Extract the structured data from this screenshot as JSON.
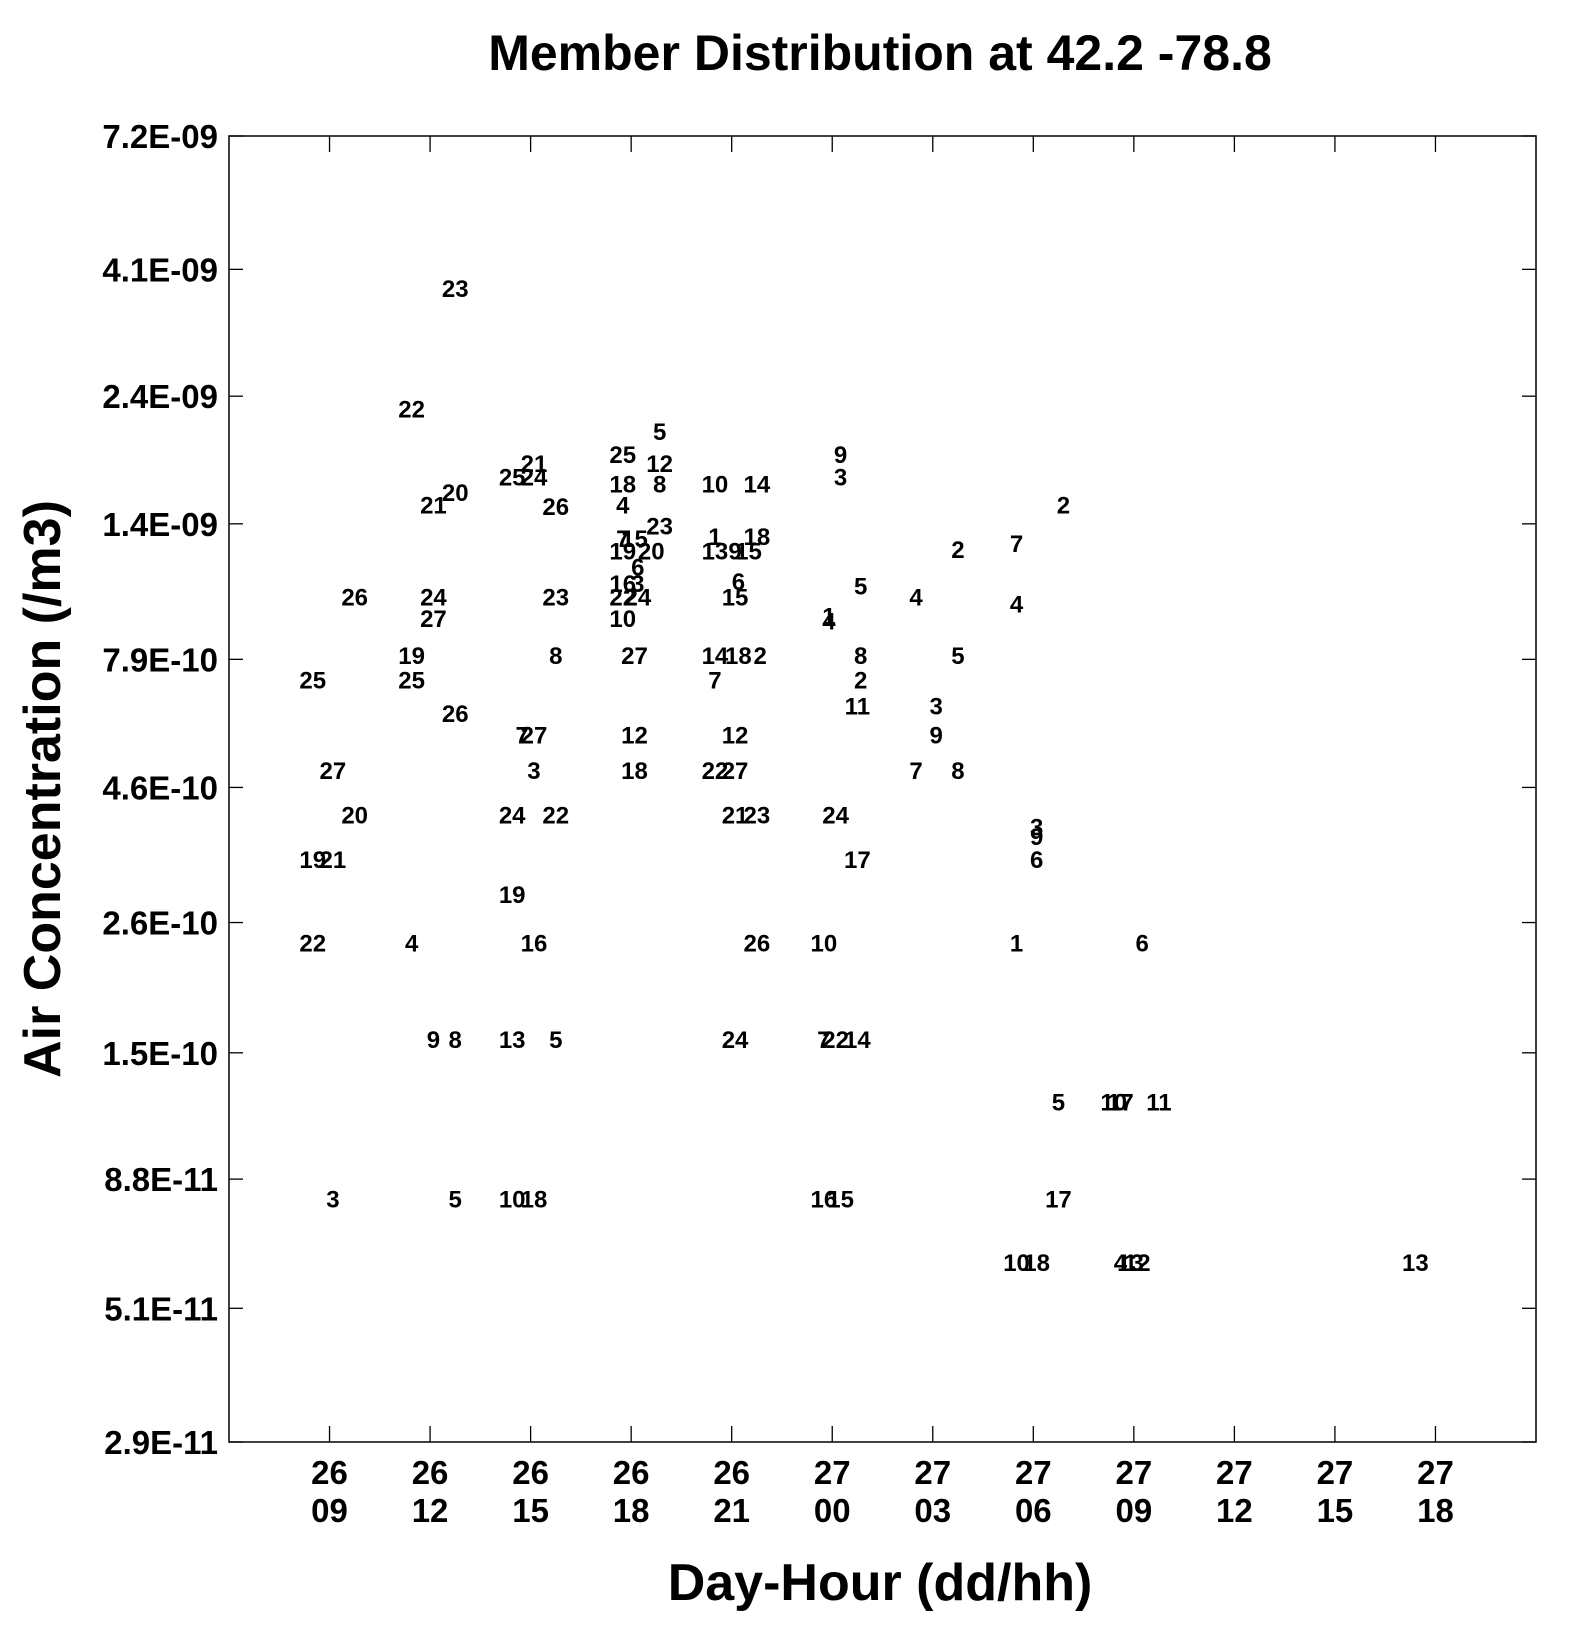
{
  "chart_data": {
    "type": "scatter",
    "title": "Member Distribution at  42.2  -78.8",
    "xlabel": "Day-Hour (dd/hh)",
    "ylabel": "Air Concentration (/m3)",
    "yscale": "log",
    "ylim": [
      2.9e-11,
      7.2e-09
    ],
    "xlim": [
      "26 06",
      "27 21"
    ],
    "grid": false,
    "y_ticks": [
      {
        "value": 7.2e-09,
        "label": "7.2E-09"
      },
      {
        "value": 4.1e-09,
        "label": "4.1E-09"
      },
      {
        "value": 2.4e-09,
        "label": "2.4E-09"
      },
      {
        "value": 1.4e-09,
        "label": "1.4E-09"
      },
      {
        "value": 7.9e-10,
        "label": "7.9E-10"
      },
      {
        "value": 4.6e-10,
        "label": "4.6E-10"
      },
      {
        "value": 2.6e-10,
        "label": "2.6E-10"
      },
      {
        "value": 1.5e-10,
        "label": "1.5E-10"
      },
      {
        "value": 8.8e-11,
        "label": "8.8E-11"
      },
      {
        "value": 5.1e-11,
        "label": "5.1E-11"
      },
      {
        "value": 2.9e-11,
        "label": "2.9E-11"
      }
    ],
    "x_ticks": [
      {
        "hour": 3,
        "day": "26",
        "hh": "09"
      },
      {
        "hour": 6,
        "day": "26",
        "hh": "12"
      },
      {
        "hour": 9,
        "day": "26",
        "hh": "15"
      },
      {
        "hour": 12,
        "day": "26",
        "hh": "18"
      },
      {
        "hour": 15,
        "day": "26",
        "hh": "21"
      },
      {
        "hour": 18,
        "day": "27",
        "hh": "00"
      },
      {
        "hour": 21,
        "day": "27",
        "hh": "03"
      },
      {
        "hour": 24,
        "day": "27",
        "hh": "06"
      },
      {
        "hour": 27,
        "day": "27",
        "hh": "09"
      },
      {
        "hour": 30,
        "day": "27",
        "hh": "12"
      },
      {
        "hour": 33,
        "day": "27",
        "hh": "15"
      },
      {
        "hour": 36,
        "day": "27",
        "hh": "18"
      }
    ],
    "points": [
      {
        "m": "23",
        "x": 6.75,
        "y": 3.79e-09
      },
      {
        "m": "22",
        "x": 5.45,
        "y": 2.28e-09
      },
      {
        "m": "20",
        "x": 6.75,
        "y": 1.6e-09
      },
      {
        "m": "21",
        "x": 6.1,
        "y": 1.52e-09
      },
      {
        "m": "26",
        "x": 3.75,
        "y": 1.03e-09
      },
      {
        "m": "24",
        "x": 6.1,
        "y": 1.03e-09
      },
      {
        "m": "27",
        "x": 6.1,
        "y": 9.4e-10
      },
      {
        "m": "19",
        "x": 5.45,
        "y": 8.05e-10
      },
      {
        "m": "25",
        "x": 2.5,
        "y": 7.25e-10
      },
      {
        "m": "25",
        "x": 5.45,
        "y": 7.25e-10
      },
      {
        "m": "26",
        "x": 6.75,
        "y": 6.3e-10
      },
      {
        "m": "27",
        "x": 3.1,
        "y": 4.95e-10
      },
      {
        "m": "20",
        "x": 3.75,
        "y": 4.1e-10
      },
      {
        "m": "19",
        "x": 2.5,
        "y": 3.4e-10
      },
      {
        "m": "21",
        "x": 3.1,
        "y": 3.4e-10
      },
      {
        "m": "22",
        "x": 2.5,
        "y": 2.39e-10
      },
      {
        "m": "4",
        "x": 5.45,
        "y": 2.39e-10
      },
      {
        "m": "9",
        "x": 6.1,
        "y": 1.59e-10
      },
      {
        "m": "8",
        "x": 6.75,
        "y": 1.59e-10
      },
      {
        "m": "3",
        "x": 3.1,
        "y": 8.1e-11
      },
      {
        "m": "5",
        "x": 6.75,
        "y": 8.1e-11
      },
      {
        "m": "21",
        "x": 9.1,
        "y": 1.81e-09
      },
      {
        "m": "25",
        "x": 8.45,
        "y": 1.71e-09
      },
      {
        "m": "24",
        "x": 9.1,
        "y": 1.71e-09
      },
      {
        "m": "26",
        "x": 9.75,
        "y": 1.51e-09
      },
      {
        "m": "23",
        "x": 9.75,
        "y": 1.03e-09
      },
      {
        "m": "8",
        "x": 9.75,
        "y": 8.05e-10
      },
      {
        "m": "7",
        "x": 8.75,
        "y": 5.75e-10
      },
      {
        "m": "27",
        "x": 9.1,
        "y": 5.75e-10
      },
      {
        "m": "3",
        "x": 9.1,
        "y": 4.95e-10
      },
      {
        "m": "24",
        "x": 8.45,
        "y": 4.1e-10
      },
      {
        "m": "22",
        "x": 9.75,
        "y": 4.1e-10
      },
      {
        "m": "19",
        "x": 8.45,
        "y": 2.93e-10
      },
      {
        "m": "16",
        "x": 9.1,
        "y": 2.39e-10
      },
      {
        "m": "13",
        "x": 8.45,
        "y": 1.59e-10
      },
      {
        "m": "5",
        "x": 9.75,
        "y": 1.59e-10
      },
      {
        "m": "10",
        "x": 8.45,
        "y": 8.1e-11
      },
      {
        "m": "18",
        "x": 9.1,
        "y": 8.1e-11
      },
      {
        "m": "5",
        "x": 12.85,
        "y": 2.07e-09
      },
      {
        "m": "25",
        "x": 11.75,
        "y": 1.88e-09
      },
      {
        "m": "12",
        "x": 12.85,
        "y": 1.81e-09
      },
      {
        "m": "18",
        "x": 11.75,
        "y": 1.66e-09
      },
      {
        "m": "8",
        "x": 12.85,
        "y": 1.66e-09
      },
      {
        "m": "4",
        "x": 11.75,
        "y": 1.52e-09
      },
      {
        "m": "23",
        "x": 12.85,
        "y": 1.39e-09
      },
      {
        "m": "7",
        "x": 11.75,
        "y": 1.32e-09
      },
      {
        "m": "15",
        "x": 12.1,
        "y": 1.32e-09
      },
      {
        "m": "19",
        "x": 11.75,
        "y": 1.25e-09
      },
      {
        "m": "20",
        "x": 12.6,
        "y": 1.25e-09
      },
      {
        "m": "6",
        "x": 12.2,
        "y": 1.17e-09
      },
      {
        "m": "16",
        "x": 11.75,
        "y": 1.09e-09
      },
      {
        "m": "3",
        "x": 12.2,
        "y": 1.09e-09
      },
      {
        "m": "22",
        "x": 11.75,
        "y": 1.03e-09
      },
      {
        "m": "24",
        "x": 12.2,
        "y": 1.03e-09
      },
      {
        "m": "10",
        "x": 11.75,
        "y": 9.4e-10
      },
      {
        "m": "27",
        "x": 12.1,
        "y": 8.05e-10
      },
      {
        "m": "12",
        "x": 12.1,
        "y": 5.75e-10
      },
      {
        "m": "18",
        "x": 12.1,
        "y": 4.95e-10
      },
      {
        "m": "10",
        "x": 14.5,
        "y": 1.66e-09
      },
      {
        "m": "14",
        "x": 15.75,
        "y": 1.66e-09
      },
      {
        "m": "1",
        "x": 14.5,
        "y": 1.33e-09
      },
      {
        "m": "18",
        "x": 15.75,
        "y": 1.33e-09
      },
      {
        "m": "13",
        "x": 14.5,
        "y": 1.25e-09
      },
      {
        "m": "9",
        "x": 15.1,
        "y": 1.25e-09
      },
      {
        "m": "15",
        "x": 15.5,
        "y": 1.25e-09
      },
      {
        "m": "6",
        "x": 15.2,
        "y": 1.1e-09
      },
      {
        "m": "15",
        "x": 15.1,
        "y": 1.03e-09
      },
      {
        "m": "14",
        "x": 14.5,
        "y": 8.05e-10
      },
      {
        "m": "18",
        "x": 15.2,
        "y": 8.05e-10
      },
      {
        "m": "2",
        "x": 15.85,
        "y": 8.05e-10
      },
      {
        "m": "7",
        "x": 14.5,
        "y": 7.25e-10
      },
      {
        "m": "12",
        "x": 15.1,
        "y": 5.75e-10
      },
      {
        "m": "22",
        "x": 14.5,
        "y": 4.95e-10
      },
      {
        "m": "27",
        "x": 15.1,
        "y": 4.95e-10
      },
      {
        "m": "21",
        "x": 15.1,
        "y": 4.1e-10
      },
      {
        "m": "23",
        "x": 15.75,
        "y": 4.1e-10
      },
      {
        "m": "26",
        "x": 15.75,
        "y": 2.39e-10
      },
      {
        "m": "24",
        "x": 15.1,
        "y": 1.59e-10
      },
      {
        "m": "9",
        "x": 18.25,
        "y": 1.88e-09
      },
      {
        "m": "3",
        "x": 18.25,
        "y": 1.71e-09
      },
      {
        "m": "5",
        "x": 18.85,
        "y": 1.08e-09
      },
      {
        "m": "1",
        "x": 17.9,
        "y": 9.5e-10
      },
      {
        "m": "4",
        "x": 17.9,
        "y": 9.3e-10
      },
      {
        "m": "8",
        "x": 18.85,
        "y": 8.05e-10
      },
      {
        "m": "2",
        "x": 18.85,
        "y": 7.25e-10
      },
      {
        "m": "11",
        "x": 18.75,
        "y": 6.5e-10
      },
      {
        "m": "24",
        "x": 18.1,
        "y": 4.1e-10
      },
      {
        "m": "17",
        "x": 18.75,
        "y": 3.4e-10
      },
      {
        "m": "10",
        "x": 17.75,
        "y": 2.39e-10
      },
      {
        "m": "7",
        "x": 17.75,
        "y": 1.59e-10
      },
      {
        "m": "22",
        "x": 18.1,
        "y": 1.59e-10
      },
      {
        "m": "14",
        "x": 18.75,
        "y": 1.59e-10
      },
      {
        "m": "16",
        "x": 17.75,
        "y": 8.1e-11
      },
      {
        "m": "15",
        "x": 18.25,
        "y": 8.1e-11
      },
      {
        "m": "4",
        "x": 20.5,
        "y": 1.03e-09
      },
      {
        "m": "3",
        "x": 21.1,
        "y": 6.5e-10
      },
      {
        "m": "9",
        "x": 21.1,
        "y": 5.75e-10
      },
      {
        "m": "7",
        "x": 20.5,
        "y": 4.95e-10
      },
      {
        "m": "2",
        "x": 21.75,
        "y": 1.26e-09
      },
      {
        "m": "5",
        "x": 21.75,
        "y": 8.05e-10
      },
      {
        "m": "8",
        "x": 21.75,
        "y": 4.95e-10
      },
      {
        "m": "7",
        "x": 23.5,
        "y": 1.29e-09
      },
      {
        "m": "4",
        "x": 23.5,
        "y": 1e-09
      },
      {
        "m": "3",
        "x": 24.1,
        "y": 3.9e-10
      },
      {
        "m": "9",
        "x": 24.1,
        "y": 3.75e-10
      },
      {
        "m": "6",
        "x": 24.1,
        "y": 3.4e-10
      },
      {
        "m": "1",
        "x": 23.5,
        "y": 2.39e-10
      },
      {
        "m": "5",
        "x": 24.75,
        "y": 1.22e-10
      },
      {
        "m": "17",
        "x": 24.75,
        "y": 8.1e-11
      },
      {
        "m": "10",
        "x": 23.5,
        "y": 6.2e-11
      },
      {
        "m": "18",
        "x": 24.1,
        "y": 6.2e-11
      },
      {
        "m": "2",
        "x": 24.9,
        "y": 1.52e-09
      },
      {
        "m": "10",
        "x": 26.4,
        "y": 1.22e-10
      },
      {
        "m": "17",
        "x": 26.6,
        "y": 1.22e-10
      },
      {
        "m": "11",
        "x": 27.75,
        "y": 1.22e-10
      },
      {
        "m": "6",
        "x": 27.25,
        "y": 2.39e-10
      },
      {
        "m": "4",
        "x": 26.6,
        "y": 6.2e-11
      },
      {
        "m": "13",
        "x": 26.9,
        "y": 6.2e-11
      },
      {
        "m": "12",
        "x": 27.1,
        "y": 6.2e-11
      },
      {
        "m": "13",
        "x": 35.4,
        "y": 6.2e-11
      }
    ]
  }
}
